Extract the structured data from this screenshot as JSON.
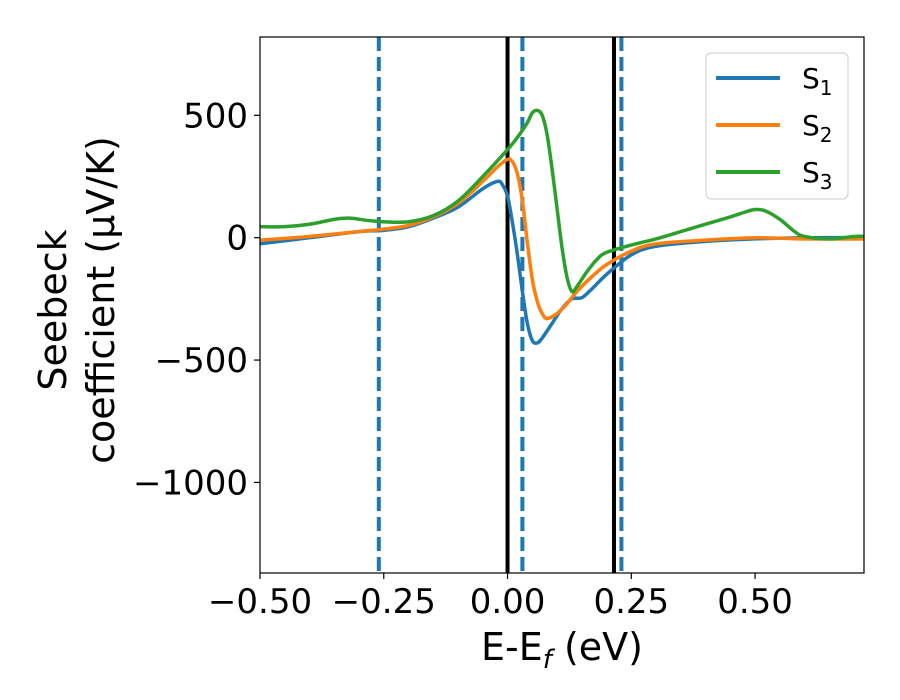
{
  "chart_data": {
    "type": "line",
    "title": "",
    "xlabel": "E-E_f (eV)",
    "ylabel_line1": "Seebeck",
    "ylabel_line2": "coefficient  (μV/K)",
    "xlim": [
      -0.5,
      0.72
    ],
    "ylim": [
      -1370,
      820
    ],
    "x_ticks": [
      -0.5,
      -0.25,
      0.0,
      0.25,
      0.5
    ],
    "x_tick_labels": [
      "−0.50",
      "−0.25",
      "0.00",
      "0.25",
      "0.50"
    ],
    "y_ticks": [
      -1000,
      -500,
      0,
      500
    ],
    "y_tick_labels": [
      "−1000",
      "−500",
      "0",
      "500"
    ],
    "grid": false,
    "legend_position": "top-right",
    "vertical_lines": [
      {
        "x": -0.26,
        "style": "dashed",
        "color": "#1f77b4"
      },
      {
        "x": 0.0,
        "style": "solid",
        "color": "#000000"
      },
      {
        "x": 0.03,
        "style": "dashed",
        "color": "#1f77b4"
      },
      {
        "x": 0.215,
        "style": "solid",
        "color": "#000000"
      },
      {
        "x": 0.23,
        "style": "dashed",
        "color": "#1f77b4"
      }
    ],
    "series": [
      {
        "name": "S1",
        "label_base": "S",
        "label_sub": "1",
        "color": "#1f77b4",
        "x": [
          -0.5,
          -0.4,
          -0.3,
          -0.25,
          -0.2,
          -0.15,
          -0.1,
          -0.05,
          -0.02,
          -0.01,
          0.0,
          0.01,
          0.02,
          0.03,
          0.04,
          0.05,
          0.06,
          0.07,
          0.09,
          0.11,
          0.13,
          0.15,
          0.17,
          0.2,
          0.25,
          0.3,
          0.4,
          0.5,
          0.6,
          0.72
        ],
        "y": [
          -25,
          0,
          25,
          30,
          45,
          80,
          125,
          200,
          230,
          215,
          170,
          60,
          -70,
          -220,
          -350,
          -420,
          -430,
          -410,
          -350,
          -290,
          -250,
          -245,
          -210,
          -150,
          -70,
          -35,
          -15,
          -5,
          0,
          0
        ]
      },
      {
        "name": "S2",
        "label_base": "S",
        "label_sub": "2",
        "color": "#ff7f0e",
        "x": [
          -0.5,
          -0.4,
          -0.3,
          -0.25,
          -0.2,
          -0.15,
          -0.1,
          -0.05,
          -0.02,
          0.0,
          0.01,
          0.02,
          0.03,
          0.04,
          0.05,
          0.06,
          0.07,
          0.08,
          0.1,
          0.12,
          0.14,
          0.17,
          0.2,
          0.25,
          0.3,
          0.4,
          0.5,
          0.6,
          0.72
        ],
        "y": [
          -10,
          5,
          25,
          35,
          50,
          85,
          140,
          230,
          290,
          320,
          310,
          260,
          150,
          -20,
          -170,
          -260,
          -310,
          -330,
          -310,
          -270,
          -220,
          -160,
          -110,
          -55,
          -25,
          -10,
          0,
          -5,
          -5
        ]
      },
      {
        "name": "S3",
        "label_base": "S",
        "label_sub": "3",
        "color": "#2ca02c",
        "x": [
          -0.5,
          -0.45,
          -0.4,
          -0.35,
          -0.32,
          -0.28,
          -0.25,
          -0.2,
          -0.15,
          -0.1,
          -0.05,
          0.0,
          0.02,
          0.04,
          0.05,
          0.06,
          0.07,
          0.08,
          0.09,
          0.1,
          0.11,
          0.12,
          0.13,
          0.14,
          0.16,
          0.18,
          0.2,
          0.25,
          0.3,
          0.35,
          0.4,
          0.45,
          0.48,
          0.5,
          0.52,
          0.55,
          0.58,
          0.6,
          0.65,
          0.7,
          0.72
        ],
        "y": [
          45,
          45,
          55,
          75,
          80,
          70,
          65,
          65,
          90,
          150,
          250,
          360,
          410,
          470,
          510,
          520,
          500,
          420,
          280,
          120,
          -40,
          -160,
          -220,
          -200,
          -140,
          -90,
          -60,
          -30,
          -5,
          25,
          55,
          85,
          105,
          115,
          110,
          75,
          25,
          5,
          -5,
          5,
          5
        ]
      }
    ]
  }
}
